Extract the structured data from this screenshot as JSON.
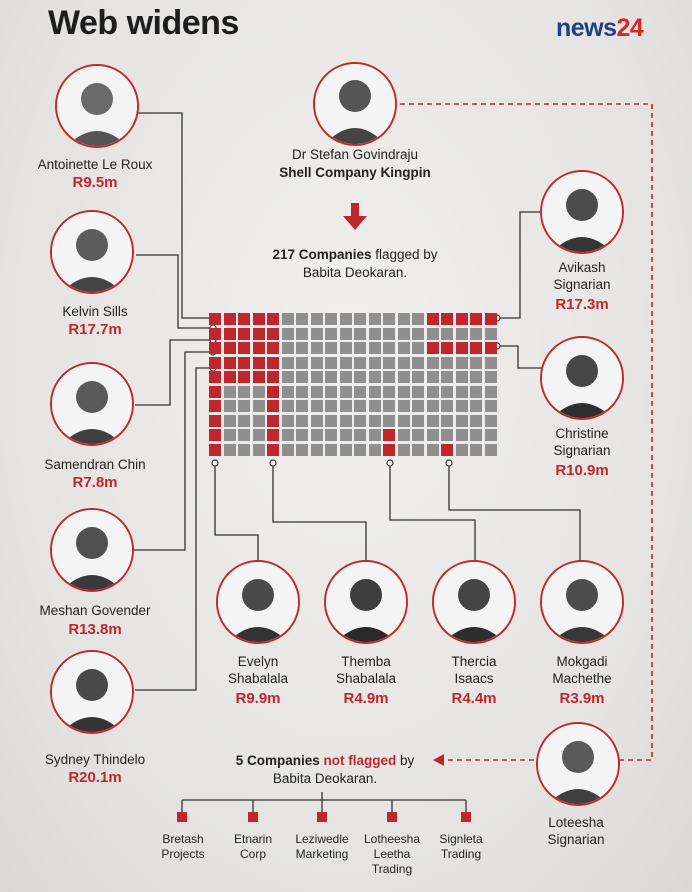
{
  "header": {
    "title": "Web widens",
    "brand_part1": "news",
    "brand_part2": "24"
  },
  "colors": {
    "accent_red": "#c0272d",
    "grid_grey": "#8f8f8f",
    "line": "#333333",
    "brand_blue": "#1f3f86"
  },
  "kingpin": {
    "name": "Dr Stefan Govindraju",
    "role": "Shell Company Kingpin"
  },
  "flagged": {
    "count_bold": "217 Companies",
    "rest_line1": " flagged by",
    "line2": "Babita Deokaran."
  },
  "not_flagged": {
    "bold": "5 Companies ",
    "red": "not flagged",
    "rest": " by",
    "line2": "Babita Deokaran."
  },
  "people": {
    "antoinette": {
      "name": "Antoinette Le Roux",
      "amount": "R9.5m"
    },
    "kelvin": {
      "name": "Kelvin Sills",
      "amount": "R17.7m"
    },
    "samendran": {
      "name": "Samendran Chin",
      "amount": "R7.8m"
    },
    "meshan": {
      "name": "Meshan Govender",
      "amount": "R13.8m"
    },
    "sydney": {
      "name": "Sydney Thindelo",
      "amount": "R20.1m"
    },
    "avikash": {
      "name_1": "Avikash",
      "name_2": "Signarian",
      "amount": "R17.3m"
    },
    "christine": {
      "name_1": "Christine",
      "name_2": "Signarian",
      "amount": "R10.9m"
    },
    "evelyn": {
      "name_1": "Evelyn",
      "name_2": "Shabalala",
      "amount": "R9.9m"
    },
    "themba": {
      "name_1": "Themba",
      "name_2": "Shabalala",
      "amount": "R4.9m"
    },
    "thercia": {
      "name_1": "Thercia",
      "name_2": "Isaacs",
      "amount": "R4.4m"
    },
    "mokgadi": {
      "name_1": "Mokgadi",
      "name_2": "Machethe",
      "amount": "R3.9m"
    },
    "loteesha": {
      "name_1": "Loteesha",
      "name_2": "Signarian"
    }
  },
  "companies": [
    {
      "l1": "Bretash",
      "l2": "Projects",
      "l3": ""
    },
    {
      "l1": "Etnarin",
      "l2": "Corp",
      "l3": ""
    },
    {
      "l1": "Leziwedle",
      "l2": "Marketing",
      "l3": ""
    },
    {
      "l1": "Lotheesha",
      "l2": "Leetha",
      "l3": "Trading"
    },
    {
      "l1": "Signleta",
      "l2": "Trading",
      "l3": ""
    }
  ]
}
